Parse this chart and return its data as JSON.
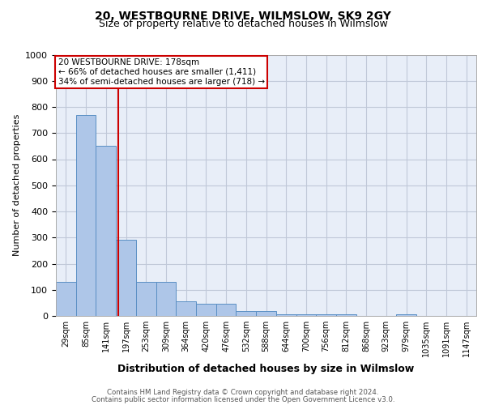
{
  "title1": "20, WESTBOURNE DRIVE, WILMSLOW, SK9 2GY",
  "title2": "Size of property relative to detached houses in Wilmslow",
  "xlabel": "Distribution of detached houses by size in Wilmslow",
  "ylabel": "Number of detached properties",
  "categories": [
    "29sqm",
    "85sqm",
    "141sqm",
    "197sqm",
    "253sqm",
    "309sqm",
    "364sqm",
    "420sqm",
    "476sqm",
    "532sqm",
    "588sqm",
    "644sqm",
    "700sqm",
    "756sqm",
    "812sqm",
    "868sqm",
    "923sqm",
    "979sqm",
    "1035sqm",
    "1091sqm",
    "1147sqm"
  ],
  "values": [
    130,
    770,
    650,
    290,
    130,
    130,
    55,
    45,
    45,
    20,
    20,
    5,
    5,
    5,
    5,
    0,
    0,
    5,
    0,
    0,
    0
  ],
  "bar_color": "#aec6e8",
  "bar_edge_color": "#5a8fc4",
  "grid_color": "#c0c8d8",
  "background_color": "#e8eef8",
  "vline_x": 2.62,
  "vline_color": "#cc0000",
  "annotation_text": "20 WESTBOURNE DRIVE: 178sqm\n← 66% of detached houses are smaller (1,411)\n34% of semi-detached houses are larger (718) →",
  "annotation_box_color": "#ffffff",
  "annotation_box_edge_color": "#cc0000",
  "ylim": [
    0,
    1000
  ],
  "yticks": [
    0,
    100,
    200,
    300,
    400,
    500,
    600,
    700,
    800,
    900,
    1000
  ],
  "footer1": "Contains HM Land Registry data © Crown copyright and database right 2024.",
  "footer2": "Contains public sector information licensed under the Open Government Licence v3.0."
}
